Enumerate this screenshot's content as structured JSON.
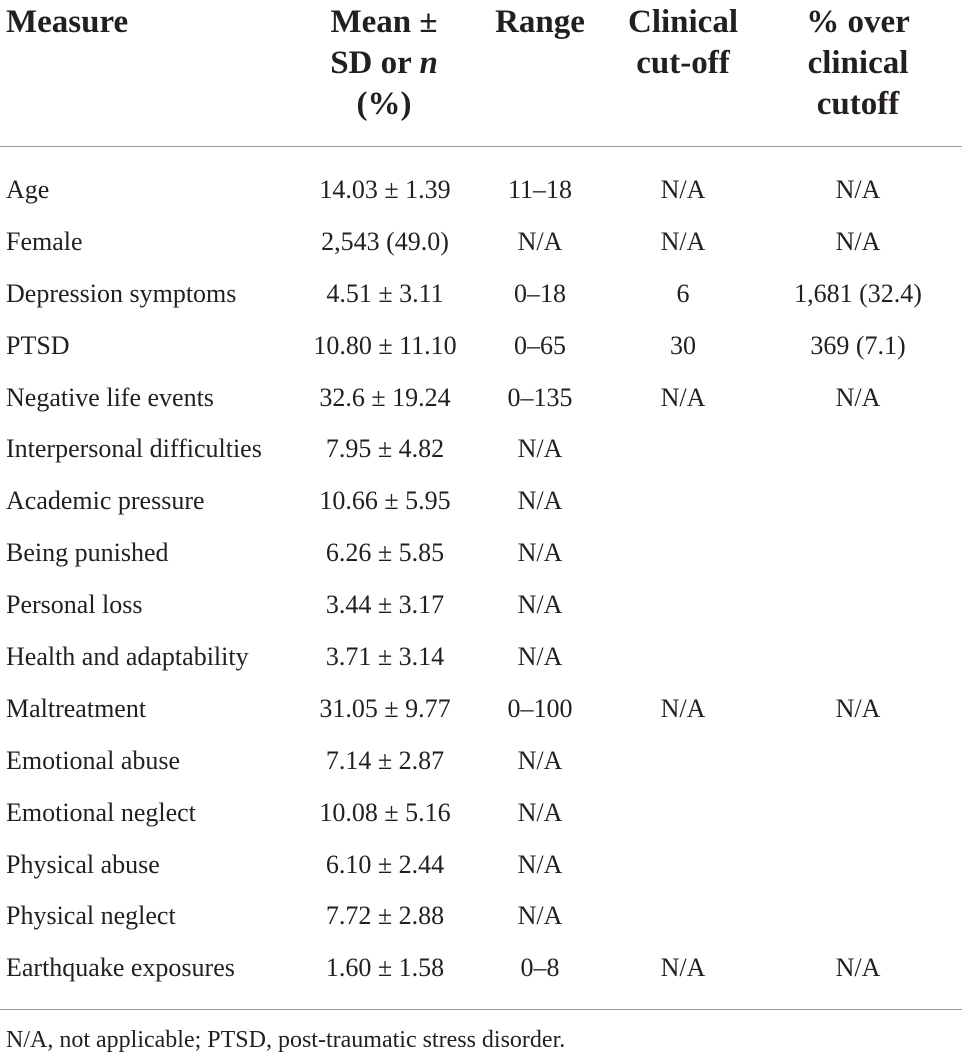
{
  "table": {
    "headers": {
      "measure": "Measure",
      "mean_line1": "Mean ±",
      "mean_line2_prefix": "SD or ",
      "mean_line2_italic": "n",
      "mean_line3": "(%)",
      "range": "Range",
      "cutoff": "Clinical\ncut-off",
      "over": "% over\nclinical\ncutoff"
    },
    "rows": [
      {
        "measure": "Age",
        "mean": "14.03 ± 1.39",
        "range": "11–18",
        "cutoff": "N/A",
        "over": "N/A"
      },
      {
        "measure": "Female",
        "mean": "2,543 (49.0)",
        "range": "N/A",
        "cutoff": "N/A",
        "over": "N/A"
      },
      {
        "measure": "Depression symptoms",
        "mean": "4.51 ± 3.11",
        "range": "0–18",
        "cutoff": "6",
        "over": "1,681 (32.4)"
      },
      {
        "measure": "PTSD",
        "mean": "10.80 ± 11.10",
        "range": "0–65",
        "cutoff": "30",
        "over": "369 (7.1)"
      },
      {
        "measure": "Negative life events",
        "mean": "32.6 ± 19.24",
        "range": "0–135",
        "cutoff": "N/A",
        "over": "N/A"
      },
      {
        "measure": "Interpersonal difficulties",
        "mean": "7.95 ± 4.82",
        "range": "N/A",
        "cutoff": "",
        "over": ""
      },
      {
        "measure": "Academic pressure",
        "mean": "10.66 ± 5.95",
        "range": "N/A",
        "cutoff": "",
        "over": ""
      },
      {
        "measure": "Being punished",
        "mean": "6.26 ± 5.85",
        "range": "N/A",
        "cutoff": "",
        "over": ""
      },
      {
        "measure": "Personal loss",
        "mean": "3.44 ± 3.17",
        "range": "N/A",
        "cutoff": "",
        "over": ""
      },
      {
        "measure": "Health and adaptability",
        "mean": "3.71 ± 3.14",
        "range": "N/A",
        "cutoff": "",
        "over": ""
      },
      {
        "measure": "Maltreatment",
        "mean": "31.05 ± 9.77",
        "range": "0–100",
        "cutoff": "N/A",
        "over": "N/A"
      },
      {
        "measure": "Emotional abuse",
        "mean": "7.14 ± 2.87",
        "range": "N/A",
        "cutoff": "",
        "over": ""
      },
      {
        "measure": "Emotional neglect",
        "mean": "10.08 ± 5.16",
        "range": "N/A",
        "cutoff": "",
        "over": ""
      },
      {
        "measure": "Physical abuse",
        "mean": "6.10 ± 2.44",
        "range": "N/A",
        "cutoff": "",
        "over": ""
      },
      {
        "measure": "Physical neglect",
        "mean": "7.72 ± 2.88",
        "range": "N/A",
        "cutoff": "",
        "over": ""
      },
      {
        "measure": "Earthquake exposures",
        "mean": "1.60 ± 1.58",
        "range": "0–8",
        "cutoff": "N/A",
        "over": "N/A"
      }
    ],
    "footnote": "N/A, not applicable; PTSD, post-traumatic stress disorder."
  }
}
